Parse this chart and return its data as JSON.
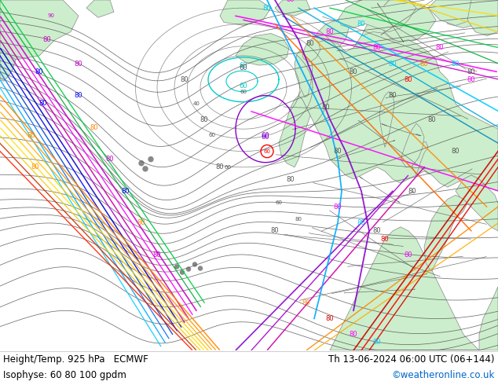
{
  "title_left": "Height/Temp. 925 hPa   ECMWF",
  "title_right": "Th 13-06-2024 06:00 UTC (06+144)",
  "subtitle_left": "Isophyse: 60 80 100 gpdm",
  "subtitle_right": "©weatheronline.co.uk",
  "subtitle_right_color": "#0066cc",
  "bg_color": "#ffffff",
  "sea_color": "#f0f0f0",
  "land_color": "#cceecc",
  "coast_color": "#888888",
  "bottom_bar_color": "#e8e8e8",
  "text_color": "#000000",
  "fig_width": 6.34,
  "fig_height": 4.9,
  "dpi": 100
}
